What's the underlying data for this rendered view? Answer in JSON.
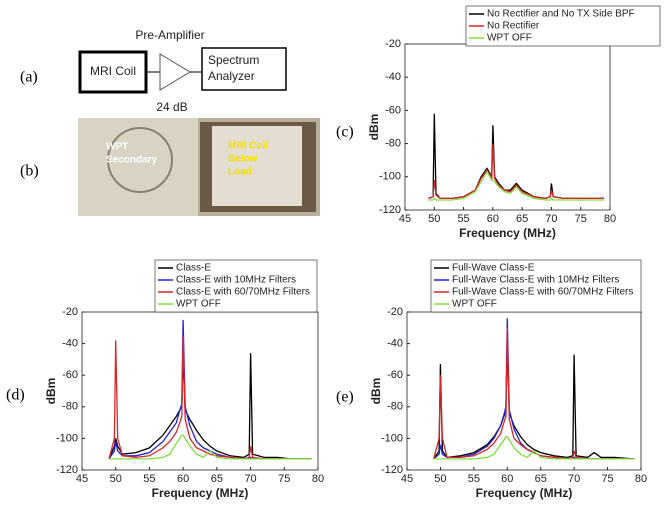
{
  "panel_labels": [
    "(a)",
    "(b)",
    "(c)",
    "(d)",
    "(e)"
  ],
  "diagram": {
    "title": "Pre-Amplifier",
    "gain": "24 dB",
    "source": "MRI Coil",
    "sink": [
      "Spectrum",
      "Analyzer"
    ]
  },
  "photo": {
    "secondary": [
      "WPT",
      "Secondary"
    ],
    "coil": [
      "MRI Coil",
      "Below",
      "Load"
    ]
  },
  "chart_data": [
    {
      "type": "line",
      "xlabel": "Frequency (MHz)",
      "ylabel": "dBm",
      "xlim": [
        45,
        80
      ],
      "xticks": [
        45,
        50,
        55,
        60,
        65,
        70,
        75,
        80
      ],
      "ylim": [
        -120,
        -20
      ],
      "yticks": [
        -120,
        -100,
        -80,
        -60,
        -40,
        -20
      ],
      "x": [
        49,
        49.8,
        50,
        50.3,
        51,
        53,
        55,
        57,
        58,
        59,
        59.5,
        59.8,
        60,
        60.3,
        61,
        62,
        63,
        64,
        65,
        67,
        69,
        69.8,
        70,
        70.3,
        72,
        74,
        76,
        79
      ],
      "series": [
        {
          "name": "No Rectifier and No TX Side BPF",
          "color": "#000000",
          "values": [
            -113,
            -112,
            -62,
            -110,
            -113,
            -113,
            -112,
            -108,
            -100,
            -95,
            -98,
            -100,
            -69,
            -100,
            -104,
            -108,
            -108,
            -104,
            -108,
            -112,
            -113,
            -112,
            -104,
            -112,
            -113,
            -113,
            -113,
            -113
          ]
        },
        {
          "name": "No Rectifier",
          "color": "#d62728",
          "values": [
            -113,
            -112,
            -102,
            -111,
            -113,
            -113,
            -112,
            -108,
            -101,
            -96,
            -99,
            -101,
            -80,
            -101,
            -105,
            -108,
            -109,
            -105,
            -109,
            -112,
            -113,
            -112,
            -108,
            -112,
            -113,
            -113,
            -113,
            -113
          ]
        },
        {
          "name": "WPT OFF",
          "color": "#7fe03c",
          "values": [
            -114,
            -114,
            -113,
            -114,
            -114,
            -114,
            -113,
            -109,
            -103,
            -97,
            -100,
            -102,
            -102,
            -103,
            -106,
            -109,
            -110,
            -106,
            -110,
            -113,
            -114,
            -114,
            -113,
            -114,
            -114,
            -114,
            -114,
            -114
          ]
        }
      ]
    },
    {
      "type": "line",
      "xlabel": "Frequency (MHz)",
      "ylabel": "dBm",
      "xlim": [
        45,
        80
      ],
      "xticks": [
        45,
        50,
        55,
        60,
        65,
        70,
        75,
        80
      ],
      "ylim": [
        -120,
        -20
      ],
      "yticks": [
        -120,
        -100,
        -80,
        -60,
        -40,
        -20
      ],
      "x": [
        49,
        49.8,
        50,
        50.3,
        51,
        53,
        55,
        57,
        58,
        59,
        59.5,
        59.8,
        60,
        60.3,
        61,
        62,
        63,
        64,
        65,
        67,
        69,
        69.8,
        70,
        70.3,
        72,
        74,
        76,
        79
      ],
      "series": [
        {
          "name": "Class-E",
          "color": "#000000",
          "values": [
            -113,
            -105,
            -100,
            -105,
            -110,
            -109,
            -106,
            -98,
            -92,
            -86,
            -82,
            -80,
            -48,
            -82,
            -88,
            -95,
            -101,
            -105,
            -108,
            -111,
            -112,
            -110,
            -46,
            -110,
            -112,
            -112,
            -113,
            -113
          ]
        },
        {
          "name": "Class-E with 10MHz Filters",
          "color": "#2222dd",
          "values": [
            -113,
            -108,
            -102,
            -108,
            -111,
            -111,
            -109,
            -102,
            -96,
            -90,
            -82,
            -78,
            -25,
            -80,
            -92,
            -102,
            -106,
            -108,
            -110,
            -112,
            -113,
            -113,
            -112,
            -113,
            -113,
            -113,
            -113,
            -113
          ]
        },
        {
          "name": "Class-E with 60/70MHz Filters",
          "color": "#d62728",
          "values": [
            -113,
            -100,
            -38,
            -100,
            -111,
            -112,
            -111,
            -106,
            -102,
            -96,
            -90,
            -86,
            -35,
            -88,
            -100,
            -106,
            -108,
            -110,
            -111,
            -112,
            -113,
            -112,
            -105,
            -112,
            -113,
            -113,
            -113,
            -113
          ]
        },
        {
          "name": "WPT OFF",
          "color": "#7fe03c",
          "values": [
            -113,
            -113,
            -113,
            -113,
            -113,
            -113,
            -113,
            -112,
            -110,
            -103,
            -100,
            -98,
            -98,
            -100,
            -105,
            -110,
            -112,
            -108,
            -112,
            -113,
            -113,
            -113,
            -113,
            -113,
            -113,
            -113,
            -113,
            -113
          ]
        }
      ]
    },
    {
      "type": "line",
      "xlabel": "Frequency (MHz)",
      "ylabel": "dBm",
      "xlim": [
        45,
        80
      ],
      "xticks": [
        45,
        50,
        55,
        60,
        65,
        70,
        75,
        80
      ],
      "ylim": [
        -120,
        -20
      ],
      "yticks": [
        -120,
        -100,
        -80,
        -60,
        -40,
        -20
      ],
      "x": [
        49,
        49.8,
        50,
        50.3,
        51,
        53,
        55,
        57,
        58,
        59,
        59.5,
        59.8,
        60,
        60.3,
        61,
        62,
        63,
        64,
        65,
        67,
        69,
        69.8,
        70,
        70.3,
        72,
        73,
        74,
        76,
        79
      ],
      "series": [
        {
          "name": "Full-Wave Class-E",
          "color": "#000000",
          "values": [
            -113,
            -108,
            -53,
            -108,
            -112,
            -111,
            -109,
            -104,
            -99,
            -92,
            -86,
            -83,
            -40,
            -84,
            -92,
            -99,
            -104,
            -107,
            -109,
            -111,
            -112,
            -111,
            -47,
            -111,
            -112,
            -109,
            -112,
            -112,
            -113
          ]
        },
        {
          "name": "Full-Wave Class-E with 10MHz Filters",
          "color": "#2222dd",
          "values": [
            -113,
            -110,
            -104,
            -110,
            -112,
            -112,
            -110,
            -105,
            -100,
            -92,
            -85,
            -80,
            -24,
            -82,
            -94,
            -103,
            -107,
            -109,
            -111,
            -112,
            -113,
            -113,
            -112,
            -113,
            -113,
            -113,
            -113,
            -113,
            -113
          ]
        },
        {
          "name": "Full-Wave Class-E with 60/70MHz Filters",
          "color": "#d62728",
          "values": [
            -113,
            -100,
            -60,
            -100,
            -112,
            -112,
            -111,
            -107,
            -103,
            -97,
            -90,
            -86,
            -30,
            -88,
            -100,
            -104,
            -107,
            -109,
            -111,
            -112,
            -113,
            -112,
            -108,
            -112,
            -113,
            -113,
            -113,
            -113,
            -113
          ]
        },
        {
          "name": "WPT OFF",
          "color": "#7fe03c",
          "values": [
            -113,
            -113,
            -113,
            -113,
            -113,
            -113,
            -113,
            -112,
            -110,
            -104,
            -101,
            -99,
            -99,
            -101,
            -106,
            -110,
            -112,
            -108,
            -112,
            -113,
            -113,
            -113,
            -113,
            -113,
            -113,
            -113,
            -113,
            -113,
            -113
          ]
        }
      ]
    }
  ]
}
